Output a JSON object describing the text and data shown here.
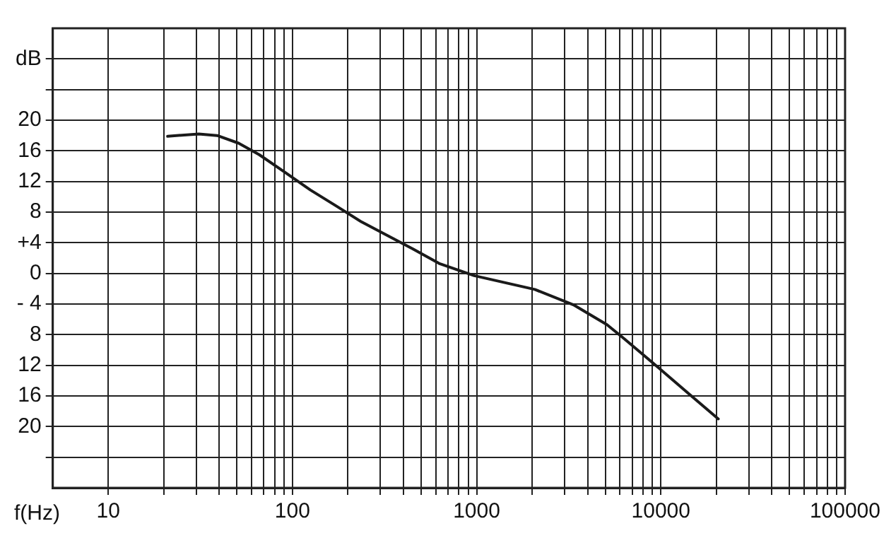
{
  "chart_data": {
    "type": "line",
    "xlabel": "f(Hz)",
    "log": "x",
    "grid": true,
    "legend": false,
    "marker": "none",
    "line_style": "solid",
    "xlim": [
      5,
      100000
    ],
    "ylim": [
      -28,
      32
    ],
    "xticks": [
      10,
      {
        "value": 20,
        "label": null
      },
      {
        "value": 30,
        "label": null
      },
      {
        "value": 40,
        "label": null
      },
      {
        "value": 50,
        "label": null
      },
      {
        "value": 60,
        "label": null
      },
      {
        "value": 70,
        "label": null
      },
      {
        "value": 80,
        "label": null
      },
      {
        "value": 90,
        "label": null
      },
      100,
      {
        "value": 200,
        "label": null
      },
      {
        "value": 300,
        "label": null
      },
      {
        "value": 400,
        "label": null
      },
      {
        "value": 500,
        "label": null
      },
      {
        "value": 600,
        "label": null
      },
      {
        "value": 700,
        "label": null
      },
      {
        "value": 800,
        "label": null
      },
      {
        "value": 900,
        "label": null
      },
      1000,
      {
        "value": 2000,
        "label": null
      },
      {
        "value": 3000,
        "label": null
      },
      {
        "value": 4000,
        "label": null
      },
      {
        "value": 5000,
        "label": null
      },
      {
        "value": 6000,
        "label": null
      },
      {
        "value": 7000,
        "label": null
      },
      {
        "value": 8000,
        "label": null
      },
      {
        "value": 9000,
        "label": null
      },
      {
        "value": 10000,
        "label": "10000"
      },
      {
        "value": 20000,
        "label": null
      },
      {
        "value": 30000,
        "label": null
      },
      {
        "value": 40000,
        "label": null
      },
      {
        "value": 50000,
        "label": null
      },
      {
        "value": 60000,
        "label": null
      },
      {
        "value": 70000,
        "label": null
      },
      {
        "value": 80000,
        "label": null
      },
      {
        "value": 90000,
        "label": null
      },
      {
        "value": 100000,
        "label": "100000"
      }
    ],
    "yticks": [
      {
        "value": 28,
        "label": "dB"
      },
      {
        "value": 24,
        "label": null
      },
      20,
      16,
      12,
      8,
      {
        "value": 4,
        "label": "+4"
      },
      0,
      {
        "value": -4,
        "label": "- 4"
      },
      {
        "value": -8,
        "label": "8"
      },
      {
        "value": -12,
        "label": "12"
      },
      {
        "value": -16,
        "label": "16"
      },
      {
        "value": -20,
        "label": "20"
      },
      {
        "value": -24,
        "label": null
      }
    ],
    "series": [
      {
        "color": "#1a1a1a",
        "x": [
          21,
          31,
          39,
          51,
          66,
          91,
          125,
          173,
          238,
          330,
          450,
          625,
          970,
          2070,
          3350,
          5100,
          6300,
          9700,
          14300,
          20500
        ],
        "values": [
          17.9,
          18.2,
          18.0,
          17.0,
          15.5,
          13.2,
          10.9,
          8.8,
          6.7,
          4.9,
          3.2,
          1.3,
          -0.3,
          -2.1,
          -4.1,
          -6.7,
          -8.5,
          -12.3,
          -15.8,
          -19.0
        ]
      }
    ]
  }
}
